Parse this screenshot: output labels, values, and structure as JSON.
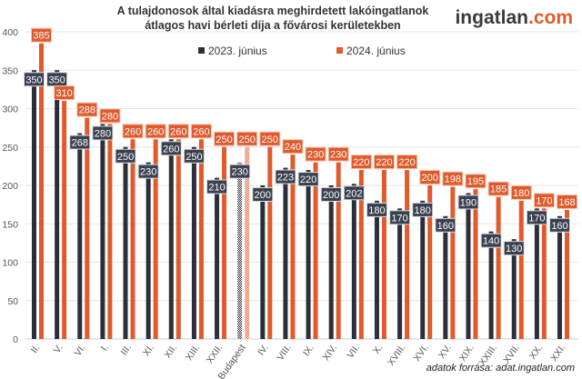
{
  "chart_data": {
    "type": "bar",
    "title_line1": "A tulajdonosok által kiadásra meghirdetett lakóingatlanok",
    "title_line2": "átlagos havi bérleti díja a fővárosi kerületekben",
    "categories": [
      "II.",
      "V.",
      "VI.",
      "I.",
      "III.",
      "XI.",
      "XII.",
      "XIII.",
      "XXII.",
      "Budapest",
      "IV.",
      "VIII.",
      "IX.",
      "XIV.",
      "VII.",
      "X.",
      "XVIII.",
      "XVI.",
      "XV.",
      "XIX.",
      "XXIII.",
      "XVII.",
      "XX.",
      "XXI."
    ],
    "series": [
      {
        "name": "2023. június",
        "color": "#2b2f3a",
        "values": [
          350,
          350,
          268,
          280,
          250,
          230,
          260,
          250,
          210,
          230,
          200,
          223,
          220,
          200,
          202,
          180,
          170,
          180,
          160,
          190,
          140,
          130,
          170,
          160
        ]
      },
      {
        "name": "2024. június",
        "color": "#e05a2b",
        "values": [
          385,
          310,
          288,
          280,
          260,
          260,
          260,
          260,
          250,
          250,
          250,
          240,
          230,
          230,
          220,
          220,
          220,
          200,
          198,
          195,
          185,
          180,
          170,
          168
        ]
      }
    ],
    "highlighted_category": "Budapest",
    "ylim": [
      0,
      400
    ],
    "yticks": [
      0,
      50,
      100,
      150,
      200,
      250,
      300,
      350,
      400
    ],
    "grid": true,
    "legend_placement": "top-center",
    "xlabel": "",
    "ylabel": ""
  },
  "logo": {
    "main": "ingatlan",
    "suffix": ".com"
  },
  "source": "adatok forrása: adat.ingatlan.com"
}
